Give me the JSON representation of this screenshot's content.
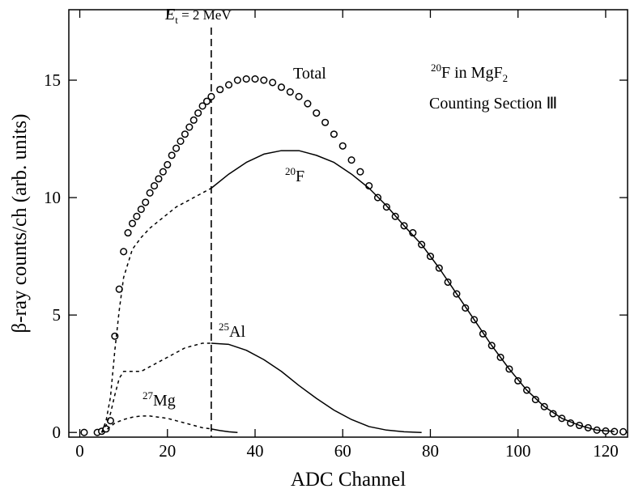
{
  "chart_data": {
    "type": "line",
    "x_label": "ADC Channel",
    "y_label": "β-ray counts/ch (arb. units)",
    "xlim": [
      -2.5,
      125
    ],
    "ylim": [
      -0.2,
      18
    ],
    "xticks": [
      0,
      20,
      40,
      60,
      80,
      100,
      120
    ],
    "yticks": [
      0,
      5,
      10,
      15
    ],
    "threshold_x": 30,
    "threshold_label": {
      "italic": "E",
      "sub": "t",
      "text": " = 2 MeV"
    },
    "annotations": [
      {
        "text": "Total"
      },
      {
        "sup": "20",
        "text": "F"
      },
      {
        "sup": "25",
        "text": "Al"
      },
      {
        "sup": "27",
        "text": "Mg"
      },
      {
        "sup": "20",
        "text": "F in MgF",
        "sub": "2"
      },
      {
        "text": "Counting Section Ⅲ"
      }
    ],
    "series": [
      {
        "style": "markers",
        "color": "#000000",
        "x": [
          1,
          4,
          5,
          6,
          7,
          8,
          9,
          10,
          11,
          12,
          13,
          14,
          15,
          16,
          17,
          18,
          19,
          20,
          21,
          22,
          23,
          24,
          25,
          26,
          27,
          28,
          29,
          30,
          32,
          34,
          36,
          38,
          40,
          42,
          44,
          46,
          48,
          50,
          52,
          54,
          56,
          58,
          60,
          62,
          64,
          66,
          68,
          70,
          72,
          74,
          76,
          78,
          80,
          82,
          84,
          86,
          88,
          90,
          92,
          94,
          96,
          98,
          100,
          102,
          104,
          106,
          108,
          110,
          112,
          114,
          116,
          118,
          120,
          122,
          124
        ],
        "values": [
          0,
          0,
          0.05,
          0.15,
          0.5,
          4.1,
          6.1,
          7.7,
          8.5,
          8.9,
          9.2,
          9.5,
          9.8,
          10.2,
          10.5,
          10.8,
          11.1,
          11.4,
          11.8,
          12.1,
          12.4,
          12.7,
          13.0,
          13.3,
          13.6,
          13.9,
          14.1,
          14.3,
          14.6,
          14.8,
          15.0,
          15.05,
          15.05,
          15.0,
          14.9,
          14.7,
          14.5,
          14.3,
          14.0,
          13.6,
          13.2,
          12.7,
          12.2,
          11.6,
          11.1,
          10.5,
          10.0,
          9.6,
          9.2,
          8.8,
          8.5,
          8.0,
          7.5,
          7.0,
          6.4,
          5.9,
          5.3,
          4.8,
          4.2,
          3.7,
          3.2,
          2.7,
          2.2,
          1.8,
          1.4,
          1.1,
          0.8,
          0.6,
          0.4,
          0.3,
          0.2,
          0.1,
          0.06,
          0.04,
          0.03
        ]
      },
      {
        "style": "dotted",
        "color": "#000000",
        "x": [
          5,
          6,
          7,
          8,
          9,
          10,
          12,
          14,
          16,
          18,
          20,
          22,
          24,
          26,
          28,
          30
        ],
        "values": [
          0,
          0.5,
          1.5,
          3.5,
          5.2,
          6.6,
          7.8,
          8.3,
          8.7,
          9.0,
          9.3,
          9.6,
          9.8,
          10.0,
          10.2,
          10.4
        ]
      },
      {
        "style": "solid",
        "color": "#000000",
        "x": [
          30,
          34,
          38,
          42,
          46,
          50,
          54,
          58,
          62,
          66,
          70,
          74,
          78,
          82,
          86,
          90,
          94,
          98,
          102,
          106,
          110,
          114,
          118,
          122
        ],
        "values": [
          10.4,
          11.0,
          11.5,
          11.85,
          12.0,
          12.0,
          11.8,
          11.5,
          11.0,
          10.4,
          9.65,
          8.8,
          8.0,
          7.0,
          5.9,
          4.8,
          3.7,
          2.7,
          1.8,
          1.1,
          0.6,
          0.3,
          0.1,
          0.04
        ]
      },
      {
        "style": "dotted",
        "color": "#000000",
        "x": [
          5,
          6,
          7,
          8,
          9,
          10,
          12,
          14,
          16,
          18,
          20,
          22,
          24,
          26,
          28,
          30
        ],
        "values": [
          0,
          0.3,
          0.8,
          1.6,
          2.3,
          2.6,
          2.6,
          2.6,
          2.8,
          3.0,
          3.2,
          3.4,
          3.6,
          3.7,
          3.8,
          3.8
        ]
      },
      {
        "style": "solid",
        "color": "#000000",
        "x": [
          30,
          34,
          38,
          42,
          46,
          50,
          54,
          58,
          62,
          66,
          70,
          74,
          78
        ],
        "values": [
          3.8,
          3.75,
          3.5,
          3.1,
          2.6,
          2.0,
          1.45,
          0.95,
          0.55,
          0.25,
          0.1,
          0.03,
          0
        ]
      },
      {
        "style": "dotted",
        "color": "#000000",
        "x": [
          5,
          6,
          8,
          10,
          12,
          14,
          16,
          18,
          20,
          22,
          24,
          26,
          28,
          30
        ],
        "values": [
          0,
          0.1,
          0.4,
          0.55,
          0.65,
          0.7,
          0.7,
          0.65,
          0.6,
          0.5,
          0.4,
          0.3,
          0.2,
          0.15
        ]
      },
      {
        "style": "solid",
        "color": "#000000",
        "x": [
          30,
          32,
          34,
          36
        ],
        "values": [
          0.15,
          0.08,
          0.03,
          0
        ]
      }
    ]
  }
}
